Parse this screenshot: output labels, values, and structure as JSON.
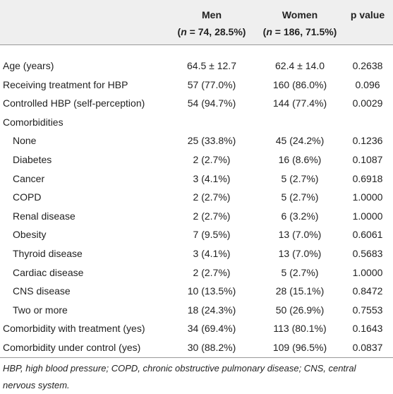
{
  "table": {
    "header": {
      "columns": [
        {
          "label": "Men",
          "n_open": "(",
          "n_var": "n",
          "n_rest": " = 74, 28.5%)"
        },
        {
          "label": "Women",
          "n_open": "(",
          "n_var": "n",
          "n_rest": " = 186, 71.5%)"
        },
        {
          "label": "p value"
        }
      ]
    },
    "rows": [
      {
        "label": "Age (years)",
        "indent": false,
        "cells": [
          "64.5 ± 12.7",
          "62.4 ± 14.0",
          "0.2638"
        ]
      },
      {
        "label": "Receiving treatment for HBP",
        "indent": false,
        "cells": [
          "57 (77.0%)",
          "160 (86.0%)",
          "0.096"
        ]
      },
      {
        "label": "Controlled HBP (self-perception)",
        "indent": false,
        "cells": [
          "54 (94.7%)",
          "144 (77.4%)",
          "0.0029"
        ]
      },
      {
        "label": "Comorbidities",
        "indent": false,
        "cells": []
      },
      {
        "label": "None",
        "indent": true,
        "cells": [
          "25 (33.8%)",
          "45 (24.2%)",
          "0.1236"
        ]
      },
      {
        "label": "Diabetes",
        "indent": true,
        "cells": [
          "2 (2.7%)",
          "16 (8.6%)",
          "0.1087"
        ]
      },
      {
        "label": "Cancer",
        "indent": true,
        "cells": [
          "3 (4.1%)",
          "5 (2.7%)",
          "0.6918"
        ]
      },
      {
        "label": "COPD",
        "indent": true,
        "cells": [
          "2 (2.7%)",
          "5 (2.7%)",
          "1.0000"
        ]
      },
      {
        "label": "Renal disease",
        "indent": true,
        "cells": [
          "2 (2.7%)",
          "6 (3.2%)",
          "1.0000"
        ]
      },
      {
        "label": "Obesity",
        "indent": true,
        "cells": [
          "7 (9.5%)",
          "13 (7.0%)",
          "0.6061"
        ]
      },
      {
        "label": "Thyroid disease",
        "indent": true,
        "cells": [
          "3 (4.1%)",
          "13 (7.0%)",
          "0.5683"
        ]
      },
      {
        "label": "Cardiac disease",
        "indent": true,
        "cells": [
          "2 (2.7%)",
          "5 (2.7%)",
          "1.0000"
        ]
      },
      {
        "label": "CNS disease",
        "indent": true,
        "cells": [
          "10 (13.5%)",
          "28 (15.1%)",
          "0.8472"
        ]
      },
      {
        "label": "Two or more",
        "indent": true,
        "cells": [
          "18 (24.3%)",
          "50 (26.9%)",
          "0.7553"
        ]
      },
      {
        "label": "Comorbidity with treatment (yes)",
        "indent": false,
        "cells": [
          "34 (69.4%)",
          "113 (80.1%)",
          "0.1643"
        ]
      },
      {
        "label": "Comorbidity under control (yes)",
        "indent": false,
        "cells": [
          "30 (88.2%)",
          "109 (96.5%)",
          "0.0837"
        ]
      }
    ],
    "footnote": "HBP, high blood pressure; COPD, chronic obstructive pulmonary disease; CNS, central nervous system."
  }
}
